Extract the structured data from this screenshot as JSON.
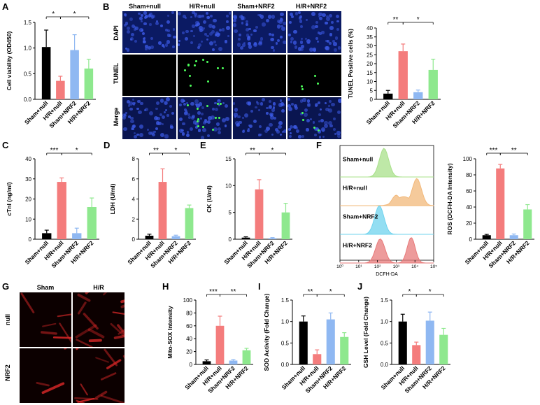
{
  "panels": {
    "A": "A",
    "B": "B",
    "C": "C",
    "D": "D",
    "E": "E",
    "F": "F",
    "G": "G",
    "H": "H",
    "I": "I",
    "J": "J"
  },
  "groups": [
    "Sham+null",
    "H/R+null",
    "Sham+NRF2",
    "H/R+NRF2"
  ],
  "bar_colors": [
    "#000000",
    "#f47c7c",
    "#8fb8f2",
    "#8ee88e"
  ],
  "microscopy_B": {
    "columns": [
      "Sham+null",
      "H/R+null",
      "Sham+NRF2",
      "H/R+NRF2"
    ],
    "rows": [
      "DAPI",
      "TUNEL",
      "Merge"
    ]
  },
  "microscopy_G": {
    "columns": [
      "Sham",
      "H/R"
    ],
    "rows": [
      "null",
      "NRF2"
    ]
  },
  "flow_F": {
    "rows": [
      "Sham+null",
      "H/R+null",
      "Sham+NRF2",
      "H/R+NRF2"
    ],
    "xlabel": "DCFH-DA",
    "ticks": [
      "10⁰",
      "10¹",
      "10²",
      "10³",
      "10⁴",
      "10⁵"
    ],
    "colors": [
      "#a8e08a",
      "#f2b87a",
      "#6fd3ee",
      "#e77a7a"
    ]
  },
  "chart_data": [
    {
      "id": "A",
      "type": "bar",
      "categories": [
        "Sham+null",
        "H/R+null",
        "Sham+NRF2",
        "H/R+NRF2"
      ],
      "values": [
        1.02,
        0.36,
        0.96,
        0.6
      ],
      "errors": [
        0.33,
        0.09,
        0.3,
        0.18
      ],
      "ylabel": "Cell viability (OD450)",
      "ylim": [
        0,
        1.5
      ],
      "ticks": [
        "0.0",
        "0.5",
        "1.0",
        "1.5"
      ],
      "sig": [
        {
          "from": 0,
          "to": 1,
          "label": "*"
        },
        {
          "from": 1,
          "to": 3,
          "label": "*"
        }
      ]
    },
    {
      "id": "B",
      "type": "bar",
      "categories": [
        "Sham+null",
        "H/R+null",
        "Sham+NRF2",
        "H/R+NRF2"
      ],
      "values": [
        3.2,
        27,
        4,
        16.5
      ],
      "errors": [
        1.8,
        4,
        1.2,
        6
      ],
      "ylabel": "TUNEL Positive cells (%)",
      "ylim": [
        0,
        40
      ],
      "ticks": [
        "0",
        "5",
        "10",
        "15",
        "20",
        "25",
        "30",
        "35",
        "40"
      ],
      "sig": [
        {
          "from": 0,
          "to": 1,
          "label": "**"
        },
        {
          "from": 1,
          "to": 3,
          "label": "*"
        }
      ]
    },
    {
      "id": "C",
      "type": "bar",
      "categories": [
        "Sham+null",
        "H/R+null",
        "Sham+NRF2",
        "H/R+NRF2"
      ],
      "values": [
        3,
        28.5,
        3,
        16
      ],
      "errors": [
        1.5,
        2,
        2.5,
        4.5
      ],
      "ylabel": "cTnI (ng/ml)",
      "ylim": [
        0,
        40
      ],
      "ticks": [
        "0",
        "10",
        "20",
        "30",
        "40"
      ],
      "sig": [
        {
          "from": 0,
          "to": 1,
          "label": "***"
        },
        {
          "from": 1,
          "to": 3,
          "label": "*"
        }
      ]
    },
    {
      "id": "D",
      "type": "bar",
      "categories": [
        "Sham+null",
        "H/R+null",
        "Sham+NRF2",
        "H/R+NRF2"
      ],
      "values": [
        0.35,
        5.7,
        0.3,
        3.1
      ],
      "errors": [
        0.15,
        1.3,
        0.1,
        0.3
      ],
      "ylabel": "LDH (U/ml)",
      "ylim": [
        0,
        8
      ],
      "ticks": [
        "0",
        "2",
        "4",
        "6",
        "8"
      ],
      "sig": [
        {
          "from": 0,
          "to": 1,
          "label": "**"
        },
        {
          "from": 1,
          "to": 3,
          "label": "*"
        }
      ]
    },
    {
      "id": "E",
      "type": "bar",
      "categories": [
        "Sham+null",
        "H/R+null",
        "Sham+NRF2",
        "H/R+NRF2"
      ],
      "values": [
        0.3,
        9.3,
        0.2,
        5
      ],
      "errors": [
        0.15,
        1.8,
        0.1,
        1.7
      ],
      "ylabel": "CK (U/ml)",
      "ylim": [
        0,
        15
      ],
      "ticks": [
        "0",
        "5",
        "10",
        "15"
      ],
      "sig": [
        {
          "from": 0,
          "to": 1,
          "label": "**"
        },
        {
          "from": 1,
          "to": 3,
          "label": "*"
        }
      ]
    },
    {
      "id": "F",
      "type": "bar",
      "categories": [
        "Sham+null",
        "H/R+null",
        "Sham+NRF2",
        "H/R+NRF2"
      ],
      "values": [
        5,
        88,
        5,
        37
      ],
      "errors": [
        1,
        5,
        1.5,
        6
      ],
      "ylabel": "ROS (DCFH-DA Intensity)",
      "ylim": [
        0,
        100
      ],
      "ticks": [
        "0",
        "20",
        "40",
        "60",
        "80",
        "100"
      ],
      "sig": [
        {
          "from": 0,
          "to": 1,
          "label": "***"
        },
        {
          "from": 1,
          "to": 3,
          "label": "**"
        }
      ]
    },
    {
      "id": "H",
      "type": "bar",
      "categories": [
        "Sham+null",
        "H/R+null",
        "Sham+NRF2",
        "H/R+NRF2"
      ],
      "values": [
        5,
        60,
        6,
        22
      ],
      "errors": [
        2,
        15,
        1.5,
        3
      ],
      "ylabel": "Mito-SOX Intensity",
      "ylim": [
        0,
        100
      ],
      "ticks": [
        "0",
        "20",
        "40",
        "60",
        "80",
        "100"
      ],
      "sig": [
        {
          "from": 0,
          "to": 1,
          "label": "***"
        },
        {
          "from": 1,
          "to": 3,
          "label": "**"
        }
      ]
    },
    {
      "id": "I",
      "type": "bar",
      "categories": [
        "Sham+null",
        "H/R+null",
        "Sham+NRF2",
        "H/R+NRF2"
      ],
      "values": [
        1.0,
        0.24,
        1.05,
        0.64
      ],
      "errors": [
        0.13,
        0.1,
        0.15,
        0.1
      ],
      "ylabel": "SOD Activity (Fold Change)",
      "ylim": [
        0,
        1.5
      ],
      "ticks": [
        "0.0",
        "0.5",
        "1.0",
        "1.5"
      ],
      "sig": [
        {
          "from": 0,
          "to": 1,
          "label": "**"
        },
        {
          "from": 1,
          "to": 3,
          "label": "*"
        }
      ]
    },
    {
      "id": "J",
      "type": "bar",
      "categories": [
        "Sham+null",
        "H/R+null",
        "Sham+NRF2",
        "H/R+NRF2"
      ],
      "values": [
        1.0,
        0.45,
        1.02,
        0.69
      ],
      "errors": [
        0.17,
        0.07,
        0.2,
        0.15
      ],
      "ylabel": "GSH Level (Fold Change)",
      "ylim": [
        0,
        1.5
      ],
      "ticks": [
        "0.0",
        "0.5",
        "1.0",
        "1.5"
      ],
      "sig": [
        {
          "from": 0,
          "to": 1,
          "label": "*"
        },
        {
          "from": 1,
          "to": 3,
          "label": "*"
        }
      ]
    }
  ]
}
